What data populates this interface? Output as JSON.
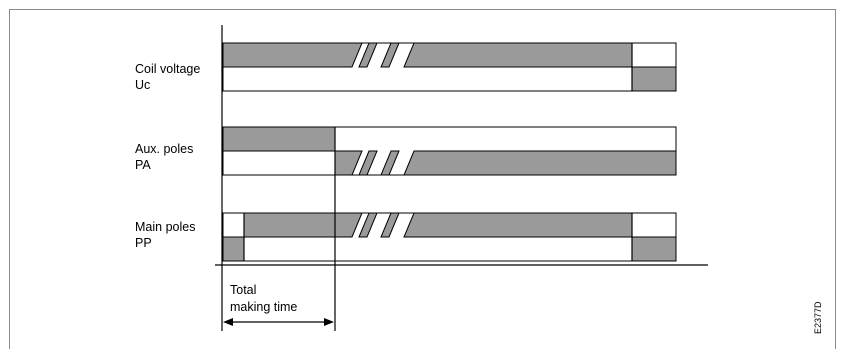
{
  "signals": {
    "coil_voltage": {
      "line1": "Coil voltage",
      "line2": "Uc"
    },
    "aux_poles": {
      "line1": "Aux. poles",
      "line2": "PA"
    },
    "main_poles": {
      "line1": "Main poles",
      "line2": "PP"
    }
  },
  "annotation": {
    "line1": "Total",
    "line2": "making time"
  },
  "figure_code": "E2377D",
  "colors": {
    "fill": "#9a9a9a",
    "line": "#000000",
    "frame": "#8c8c8c"
  }
}
